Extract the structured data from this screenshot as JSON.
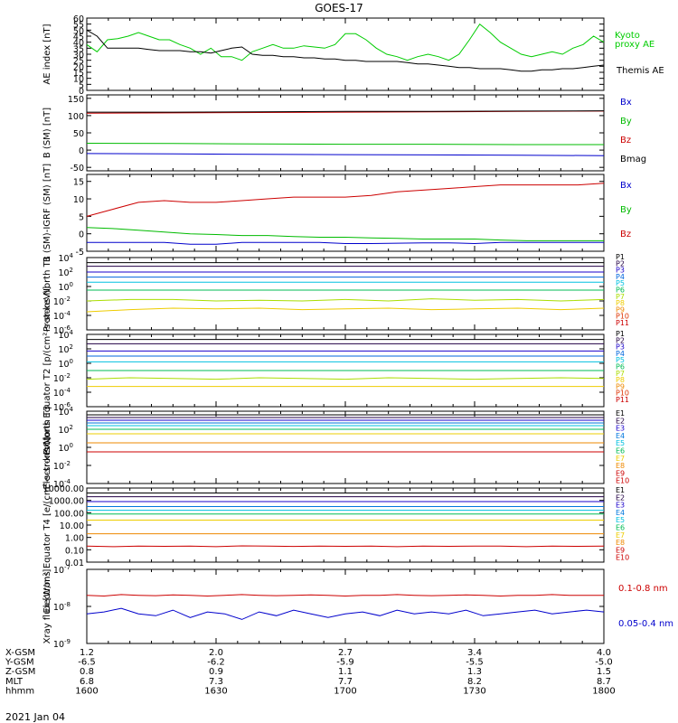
{
  "title": "GOES-17",
  "date": "2021 Jan 04",
  "x_axis": {
    "rows": [
      {
        "label": "X-GSM",
        "values": [
          "1.2",
          "2.0",
          "2.7",
          "3.4",
          "4.0"
        ]
      },
      {
        "label": "Y-GSM",
        "values": [
          "-6.5",
          "-6.2",
          "-5.9",
          "-5.5",
          "-5.0"
        ]
      },
      {
        "label": "Z-GSM",
        "values": [
          "0.8",
          "0.9",
          "1.1",
          "1.3",
          "1.5"
        ]
      },
      {
        "label": "MLT",
        "values": [
          "6.8",
          "7.3",
          "7.7",
          "8.2",
          "8.7"
        ]
      },
      {
        "label": "hhmm",
        "values": [
          "1600",
          "1630",
          "1700",
          "1730",
          "1800"
        ]
      }
    ]
  },
  "chart_data": [
    {
      "type": "line",
      "panel": "ae",
      "ylabel": "AE index [nT]",
      "ylim": [
        0,
        60
      ],
      "ticks": [
        "0",
        "5",
        "10",
        "15",
        "20",
        "25",
        "30",
        "35",
        "40",
        "45",
        "50",
        "55",
        "60"
      ],
      "series": [
        {
          "name": "Kyoto proxy AE",
          "color": "#00cc00",
          "values": [
            38,
            32,
            42,
            43,
            45,
            48,
            45,
            42,
            42,
            38,
            35,
            30,
            35,
            28,
            28,
            25,
            32,
            35,
            38,
            35,
            35,
            37,
            36,
            35,
            38,
            47,
            47,
            42,
            35,
            30,
            28,
            25,
            28,
            30,
            28,
            25,
            30,
            42,
            55,
            48,
            40,
            35,
            30,
            28,
            30,
            32,
            30,
            35,
            38,
            45,
            40
          ]
        },
        {
          "name": "Themis AE",
          "color": "#000000",
          "values": [
            50,
            45,
            35,
            35,
            35,
            35,
            34,
            33,
            33,
            33,
            32,
            32,
            31,
            33,
            35,
            36,
            30,
            29,
            29,
            28,
            28,
            27,
            27,
            26,
            26,
            25,
            25,
            24,
            24,
            24,
            24,
            23,
            22,
            22,
            21,
            20,
            19,
            19,
            18,
            18,
            18,
            17,
            16,
            16,
            17,
            17,
            18,
            18,
            19,
            20,
            21
          ]
        }
      ]
    },
    {
      "type": "line",
      "panel": "bsm",
      "ylabel": "B (SM) [nT]",
      "ylim": [
        -60,
        160
      ],
      "ticks": [
        "-50",
        "0",
        "50",
        "100",
        "150"
      ],
      "series": [
        {
          "name": "Bx",
          "color": "#0000cc",
          "values": [
            -10,
            -11,
            -12,
            -13,
            -14,
            -15,
            -16
          ]
        },
        {
          "name": "By",
          "color": "#00bb00",
          "values": [
            20,
            19,
            18,
            17,
            17,
            16,
            16
          ]
        },
        {
          "name": "Bz",
          "color": "#cc0000",
          "values": [
            107,
            108,
            109,
            110,
            111,
            112,
            113
          ]
        },
        {
          "name": "Bmag",
          "color": "#000000",
          "values": [
            110,
            110,
            111,
            112,
            112,
            113,
            114
          ]
        }
      ]
    },
    {
      "type": "line",
      "panel": "bigrf",
      "ylabel": "B (SM)-IGRF (SM) [nT]",
      "ylim": [
        -5,
        17
      ],
      "ticks": [
        "-5",
        "0",
        "5",
        "10",
        "15"
      ],
      "series": [
        {
          "name": "Bx",
          "color": "#0000cc",
          "values": [
            -2.5,
            -2.5,
            -2.5,
            -2.5,
            -3,
            -3,
            -2.5,
            -2.5,
            -2.5,
            -2.5,
            -2.8,
            -2.8,
            -2.7,
            -2.6,
            -2.6,
            -2.8,
            -2.5,
            -2.5,
            -2.5,
            -2.5,
            -2.5
          ]
        },
        {
          "name": "By",
          "color": "#00bb00",
          "values": [
            1.8,
            1.5,
            1.0,
            0.5,
            0,
            -0.2,
            -0.5,
            -0.5,
            -0.8,
            -1,
            -1,
            -1.2,
            -1.3,
            -1.5,
            -1.5,
            -1.5,
            -1.8,
            -2,
            -2,
            -2,
            -2
          ]
        },
        {
          "name": "Bz",
          "color": "#cc0000",
          "values": [
            5,
            7,
            9,
            9.5,
            9,
            9,
            9.5,
            10,
            10.5,
            10.5,
            10.5,
            11,
            12,
            12.5,
            13,
            13.5,
            14,
            14,
            14,
            14,
            14.5
          ]
        }
      ]
    },
    {
      "type": "line",
      "panel": "protons-t1",
      "ylabel": "Protons North T1",
      "ylim": [
        -6,
        4
      ],
      "scale": "log",
      "ticks": [
        "10^-6",
        "10^-4",
        "10^-2",
        "10^0",
        "10^2",
        "10^4"
      ],
      "series": [
        {
          "name": "P1",
          "color": "#000000",
          "values": [
            3.3,
            3.3
          ]
        },
        {
          "name": "P2",
          "color": "#220044",
          "values": [
            2.8,
            2.8
          ]
        },
        {
          "name": "P3",
          "color": "#1a00cc",
          "values": [
            2.0,
            2.0
          ]
        },
        {
          "name": "P4",
          "color": "#0066dd",
          "values": [
            1.3,
            1.3
          ]
        },
        {
          "name": "P5",
          "color": "#00c0e0",
          "values": [
            0.6,
            0.6
          ]
        },
        {
          "name": "P6",
          "color": "#00bb55",
          "values": [
            -0.5,
            -0.5
          ]
        },
        {
          "name": "P7",
          "color": "#aadd00",
          "values": [
            -2.0,
            -1.8,
            -1.8,
            -2.0,
            -1.9,
            -2.0,
            -1.8,
            -2.0,
            -1.7,
            -1.9,
            -1.8,
            -2.0,
            -1.8
          ]
        },
        {
          "name": "P8",
          "color": "#eecc00",
          "values": [
            -3.5,
            -3.2,
            -3.0,
            -3.1,
            -3.0,
            -3.2,
            -3.1,
            -3.0,
            -3.2,
            -3.1,
            -3.0,
            -3.2,
            -3.0
          ]
        }
      ]
    },
    {
      "type": "line",
      "panel": "protons-t2",
      "ylabel": "Protons Equator T2 [p/(cm²-s-sr-keV)]",
      "ylim": [
        -6,
        4
      ],
      "scale": "log",
      "ticks": [
        "10^-6",
        "10^-4",
        "10^-2",
        "10^0",
        "10^2",
        "10^4"
      ],
      "series": [
        {
          "name": "P1",
          "color": "#000000",
          "values": [
            3.3,
            3.3
          ]
        },
        {
          "name": "P2",
          "color": "#220044",
          "values": [
            2.7,
            2.7
          ]
        },
        {
          "name": "P3",
          "color": "#1a00cc",
          "values": [
            1.7,
            1.7
          ]
        },
        {
          "name": "P4",
          "color": "#0066dd",
          "values": [
            1.0,
            1.0
          ]
        },
        {
          "name": "P5",
          "color": "#00c0e0",
          "values": [
            0.2,
            0.2
          ]
        },
        {
          "name": "P6",
          "color": "#00bb55",
          "values": [
            -1.0,
            -1.0
          ]
        },
        {
          "name": "P7",
          "color": "#aadd00",
          "values": [
            -2.2,
            -2.0,
            -2.1,
            -2.2,
            -2.0,
            -2.1,
            -2.2,
            -2.0,
            -2.1,
            -2.2,
            -2.1,
            -2.0,
            -2.1
          ]
        },
        {
          "name": "P8",
          "color": "#eecc00",
          "values": [
            -3.2,
            -3.2,
            -3.2,
            -3.2,
            -3.2,
            -3.2,
            -3.2,
            -3.2,
            -3.2,
            -3.2,
            -3.2,
            -3.2,
            -3.2
          ]
        }
      ]
    },
    {
      "type": "line",
      "panel": "electrons-t3",
      "ylabel": "Electrons North T3",
      "ylim": [
        -4,
        4
      ],
      "scale": "log",
      "ticks": [
        "10^-4",
        "10^-2",
        "10^0",
        "10^2",
        "10^4"
      ],
      "series": [
        {
          "name": "E1",
          "color": "#000000",
          "values": [
            3.6,
            3.6
          ]
        },
        {
          "name": "E2",
          "color": "#220044",
          "values": [
            3.3,
            3.3
          ]
        },
        {
          "name": "E3",
          "color": "#1a00cc",
          "values": [
            3.0,
            3.0
          ]
        },
        {
          "name": "E4",
          "color": "#0077dd",
          "values": [
            2.7,
            2.7
          ]
        },
        {
          "name": "E5",
          "color": "#00c0e0",
          "values": [
            2.4,
            2.4
          ]
        },
        {
          "name": "E6",
          "color": "#00bb55",
          "values": [
            2.0,
            2.0
          ]
        },
        {
          "name": "E7",
          "color": "#eecc00",
          "values": [
            1.5,
            1.5
          ]
        },
        {
          "name": "E8",
          "color": "#ee8800",
          "values": [
            0.5,
            0.5
          ]
        },
        {
          "name": "E9",
          "color": "#cc0000",
          "values": [
            -0.5,
            -0.5
          ]
        }
      ]
    },
    {
      "type": "line",
      "panel": "electrons-t4",
      "ylabel": "Electrons Equator T4 [e/(cm²-s-sr-keV)]",
      "ylim": [
        -2,
        4
      ],
      "scale": "log",
      "ticks": [
        "0.01",
        "0.10",
        "1.00",
        "10.00",
        "100.00",
        "1000.00",
        "10000.00"
      ],
      "series": [
        {
          "name": "E1",
          "color": "#000000",
          "values": [
            3.6,
            3.6
          ]
        },
        {
          "name": "E2",
          "color": "#220044",
          "values": [
            3.3,
            3.3
          ]
        },
        {
          "name": "E3",
          "color": "#1a00cc",
          "values": [
            2.9,
            2.9
          ]
        },
        {
          "name": "E4",
          "color": "#0077dd",
          "values": [
            2.5,
            2.5
          ]
        },
        {
          "name": "E5",
          "color": "#00c0e0",
          "values": [
            2.2,
            2.2
          ]
        },
        {
          "name": "E6",
          "color": "#00bb55",
          "values": [
            1.9,
            1.9
          ]
        },
        {
          "name": "E7",
          "color": "#eecc00",
          "values": [
            1.4,
            1.4
          ]
        },
        {
          "name": "E8",
          "color": "#ee8800",
          "values": [
            0.3,
            0.3
          ]
        },
        {
          "name": "E9",
          "color": "#cc0000",
          "values": [
            -0.7,
            -0.75,
            -0.7,
            -0.72,
            -0.7,
            -0.75,
            -0.68,
            -0.7,
            -0.73,
            -0.7,
            -0.72,
            -0.7,
            -0.75,
            -0.7,
            -0.72,
            -0.7,
            -0.7,
            -0.75,
            -0.7,
            -0.72,
            -0.7
          ]
        }
      ]
    },
    {
      "type": "line",
      "panel": "xray",
      "ylabel": "Xray flux [W/m²]",
      "ylim": [
        -9,
        -7
      ],
      "scale": "log",
      "ticks": [
        "10^-9",
        "10^-8",
        "10^-7"
      ],
      "series": [
        {
          "name": "0.1-0.8 nm",
          "color": "#cc0000",
          "values": [
            -7.7,
            -7.72,
            -7.68,
            -7.7,
            -7.71,
            -7.69,
            -7.7,
            -7.72,
            -7.7,
            -7.68,
            -7.7,
            -7.71,
            -7.7,
            -7.69,
            -7.7,
            -7.72,
            -7.7,
            -7.7,
            -7.68,
            -7.7,
            -7.71,
            -7.7,
            -7.69,
            -7.7,
            -7.72,
            -7.7,
            -7.7,
            -7.68,
            -7.7,
            -7.7,
            -7.7
          ]
        },
        {
          "name": "0.05-0.4 nm",
          "color": "#0000cc",
          "values": [
            -8.2,
            -8.15,
            -8.05,
            -8.2,
            -8.25,
            -8.1,
            -8.3,
            -8.15,
            -8.2,
            -8.35,
            -8.15,
            -8.25,
            -8.1,
            -8.2,
            -8.3,
            -8.2,
            -8.15,
            -8.25,
            -8.1,
            -8.2,
            -8.15,
            -8.2,
            -8.1,
            -8.25,
            -8.2,
            -8.15,
            -8.1,
            -8.2,
            -8.15,
            -8.1,
            -8.15
          ]
        }
      ]
    }
  ],
  "legends": {
    "ae": [
      "Kyoto",
      "proxy AE",
      "Themis AE"
    ],
    "bsm": [
      "Bx",
      "By",
      "Bz",
      "Bmag"
    ],
    "bigrf": [
      "Bx",
      "By",
      "Bz"
    ],
    "protons": [
      "P1",
      "P2",
      "P3",
      "P4",
      "P5",
      "P6",
      "P7",
      "P8",
      "P9",
      "P10",
      "P11"
    ],
    "electrons": [
      "E1",
      "E2",
      "E3",
      "E4",
      "E5",
      "E6",
      "E7",
      "E8",
      "E9",
      "E10"
    ],
    "xray": [
      "0.1-0.8 nm",
      "0.05-0.4 nm"
    ]
  },
  "colors": {
    "protons": [
      "#000000",
      "#220044",
      "#1a00cc",
      "#0066dd",
      "#00c0e0",
      "#00bb55",
      "#aadd00",
      "#eecc00",
      "#ee8800",
      "#dd3300",
      "#cc0000"
    ],
    "electrons": [
      "#000000",
      "#220044",
      "#1a00cc",
      "#0077dd",
      "#00c0e0",
      "#00bb55",
      "#eecc00",
      "#ee8800",
      "#cc0000",
      "#cc0000"
    ]
  }
}
